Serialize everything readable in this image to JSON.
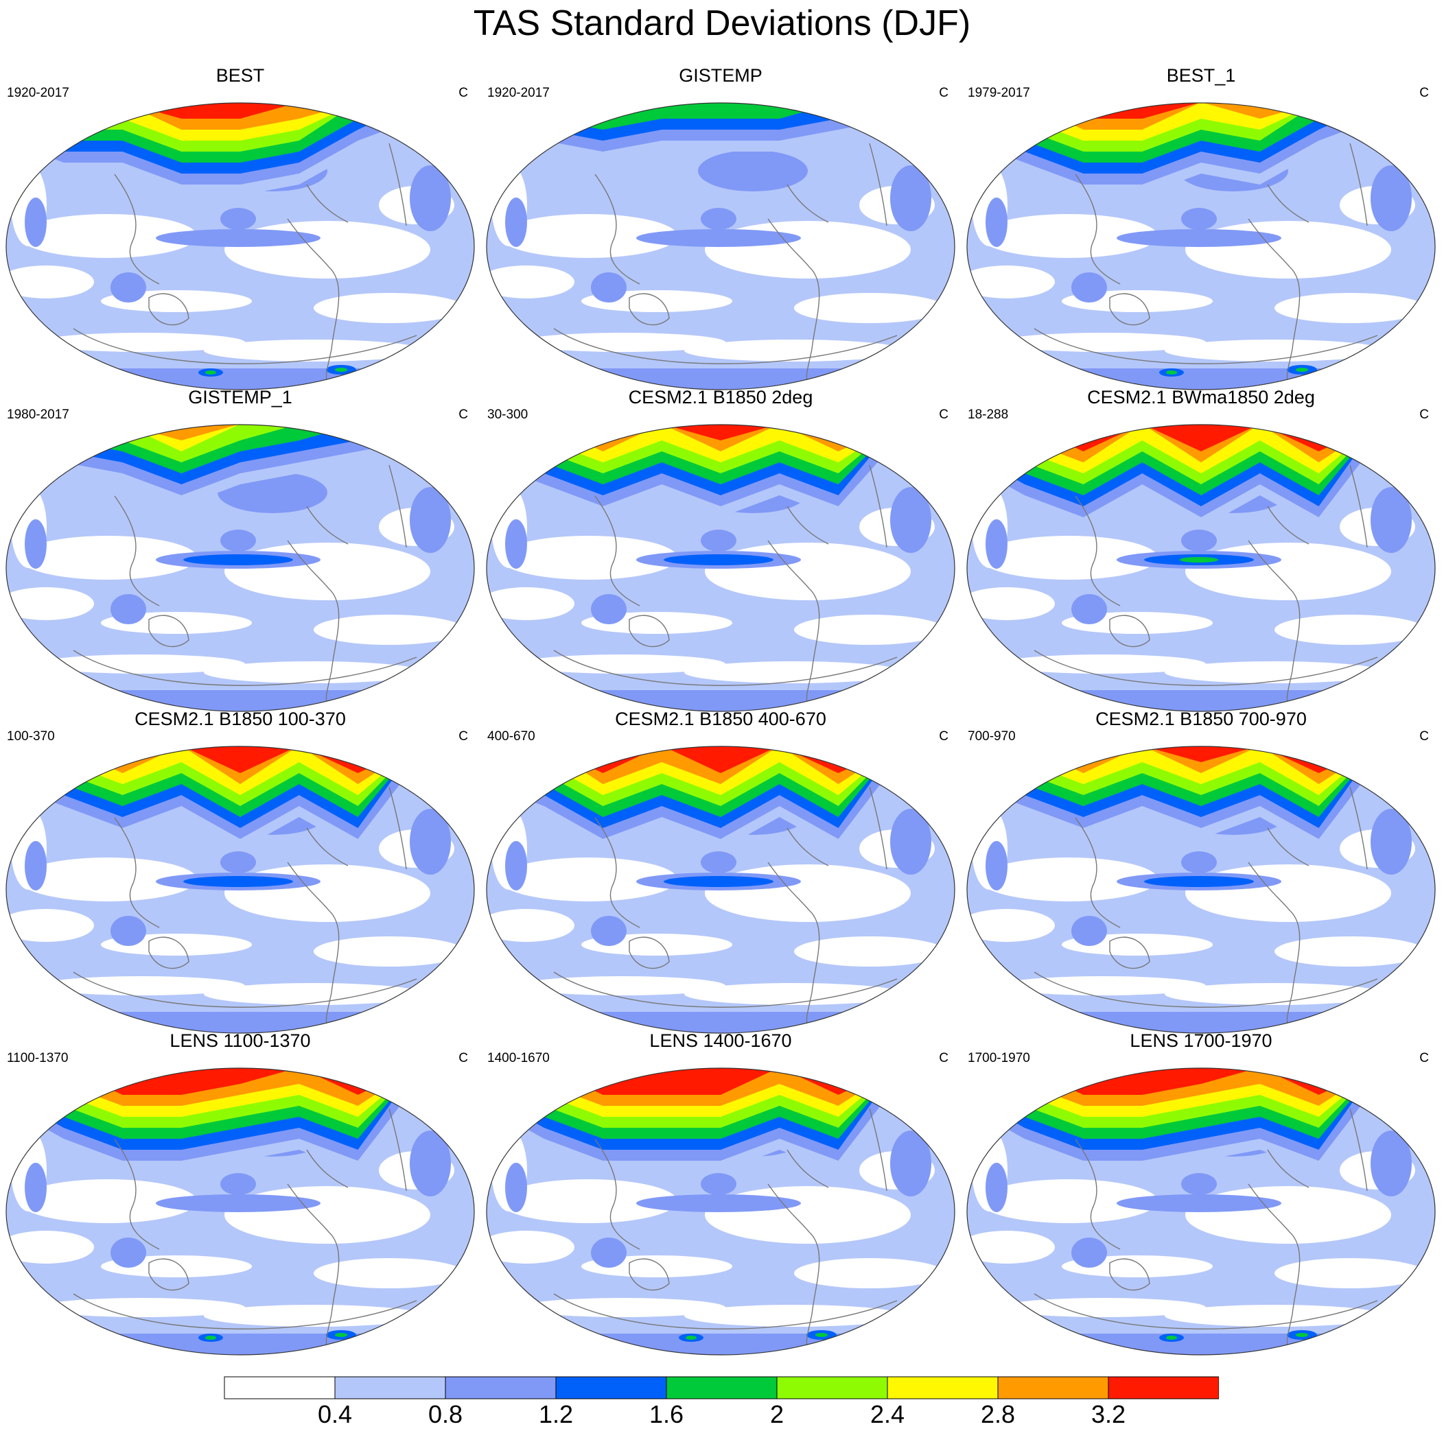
{
  "title": "TAS Standard Deviations (DJF)",
  "colors": [
    "#ffffff",
    "#b4c7fa",
    "#8099f7",
    "#0061fa",
    "#00c93a",
    "#8ffb03",
    "#fff800",
    "#ff9a00",
    "#ff1a00"
  ],
  "panels": [
    {
      "title": "BEST",
      "left": "1920-2017",
      "right": "C",
      "profile": {
        "arctic": [
          4,
          6,
          6,
          8,
          8,
          7,
          4,
          2,
          1
        ],
        "tropic_band": 2,
        "ant_spots": true
      }
    },
    {
      "title": "GISTEMP",
      "left": "1920-2017",
      "right": "C",
      "profile": {
        "arctic": [
          3,
          4,
          5,
          4,
          4,
          4,
          3,
          2,
          1
        ],
        "tropic_band": 2,
        "ant_spots": false
      }
    },
    {
      "title": "BEST_1",
      "left": "1979-2017",
      "right": "C",
      "profile": {
        "arctic": [
          4,
          6,
          8,
          8,
          6,
          7,
          4,
          2,
          1
        ],
        "tropic_band": 2,
        "ant_spots": true
      }
    },
    {
      "title": "GISTEMP_1",
      "left": "1980-2017",
      "right": "C",
      "profile": {
        "arctic": [
          3,
          4,
          5,
          7,
          5,
          4,
          3,
          2,
          1
        ],
        "tropic_band": 3,
        "ant_spots": false
      }
    },
    {
      "title": "CESM2.1 B1850 2deg",
      "left": "30-300",
      "right": "C",
      "profile": {
        "arctic": [
          4,
          6,
          8,
          6,
          8,
          6,
          8,
          2,
          1
        ],
        "tropic_band": 3,
        "ant_spots": false
      }
    },
    {
      "title": "CESM2.1 BWma1850 2deg",
      "left": "18-288",
      "right": "C",
      "profile": {
        "arctic": [
          4,
          7,
          9,
          6,
          9,
          6,
          9,
          2,
          1
        ],
        "tropic_band": 4,
        "ant_spots": false
      }
    },
    {
      "title": "CESM2.1 B1850 100-370",
      "left": "100-370",
      "right": "C",
      "profile": {
        "arctic": [
          4,
          6,
          8,
          6,
          9,
          6,
          9,
          2,
          1
        ],
        "tropic_band": 3,
        "ant_spots": false
      }
    },
    {
      "title": "CESM2.1 B1850 400-670",
      "left": "400-670",
      "right": "C",
      "profile": {
        "arctic": [
          4,
          6,
          9,
          7,
          9,
          6,
          9,
          2,
          1
        ],
        "tropic_band": 3,
        "ant_spots": false
      }
    },
    {
      "title": "CESM2.1 B1850 700-970",
      "left": "700-970",
      "right": "C",
      "profile": {
        "arctic": [
          4,
          6,
          8,
          6,
          8,
          6,
          9,
          2,
          1
        ],
        "tropic_band": 3,
        "ant_spots": false
      }
    },
    {
      "title": "LENS 1100-1370",
      "left": "1100-1370",
      "right": "C",
      "profile": {
        "arctic": [
          4,
          7,
          9,
          9,
          8,
          7,
          9,
          2,
          1
        ],
        "tropic_band": 2,
        "ant_spots": true
      }
    },
    {
      "title": "LENS 1400-1670",
      "left": "1400-1670",
      "right": "C",
      "profile": {
        "arctic": [
          4,
          7,
          9,
          9,
          9,
          7,
          9,
          2,
          1
        ],
        "tropic_band": 2,
        "ant_spots": true
      }
    },
    {
      "title": "LENS 1700-1970",
      "left": "1700-1970",
      "right": "C",
      "profile": {
        "arctic": [
          4,
          7,
          9,
          9,
          8,
          7,
          9,
          2,
          1
        ],
        "tropic_band": 2,
        "ant_spots": true
      }
    }
  ],
  "colorbar": {
    "labels": [
      "0.4",
      "0.8",
      "1.2",
      "1.6",
      "2",
      "2.4",
      "2.8",
      "3.2"
    ]
  }
}
